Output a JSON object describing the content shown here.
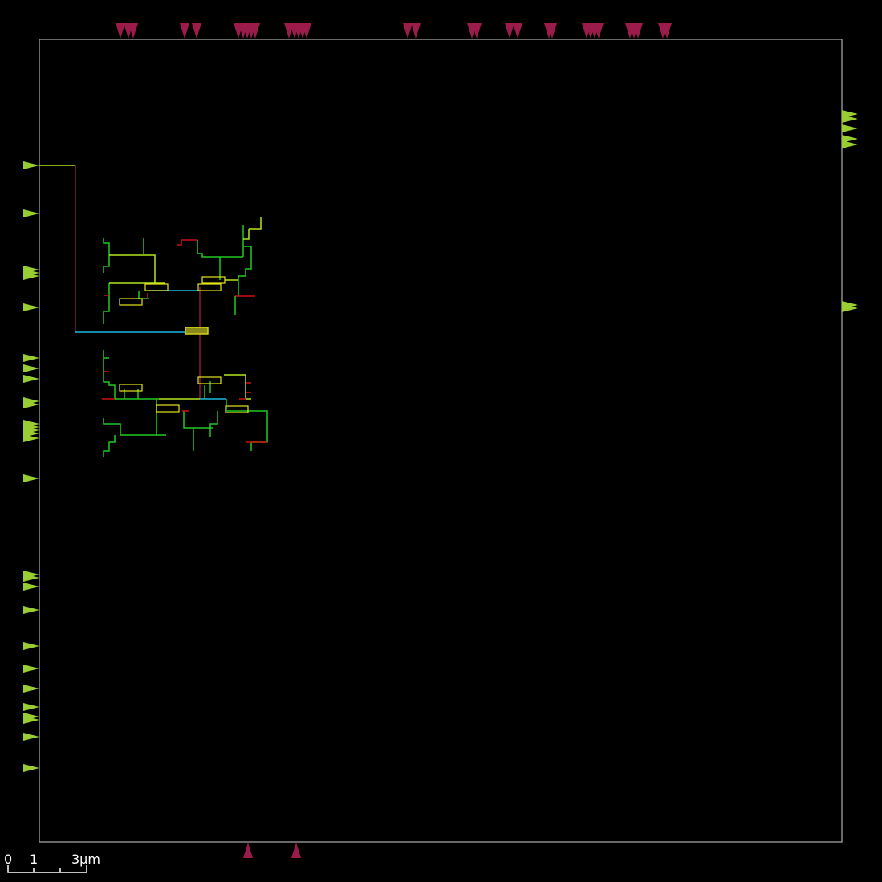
{
  "viewer": {
    "background": "#000000",
    "die_outline_color": "#8c8c8c",
    "pin_colors": {
      "top_bottom": "#9b1b4a",
      "left_right": "#9acd32"
    }
  },
  "layer_colors": {
    "metal_green": "#22c722",
    "metal_yellow_green": "#b4e61e",
    "metal_red": "#d01010",
    "metal_cyan": "#1ab8e0",
    "route_maroon": "#8a1a3a",
    "cell_outline": "#e6e61e"
  },
  "scale_bar": {
    "labels": [
      "0",
      "1",
      "3μm"
    ]
  }
}
